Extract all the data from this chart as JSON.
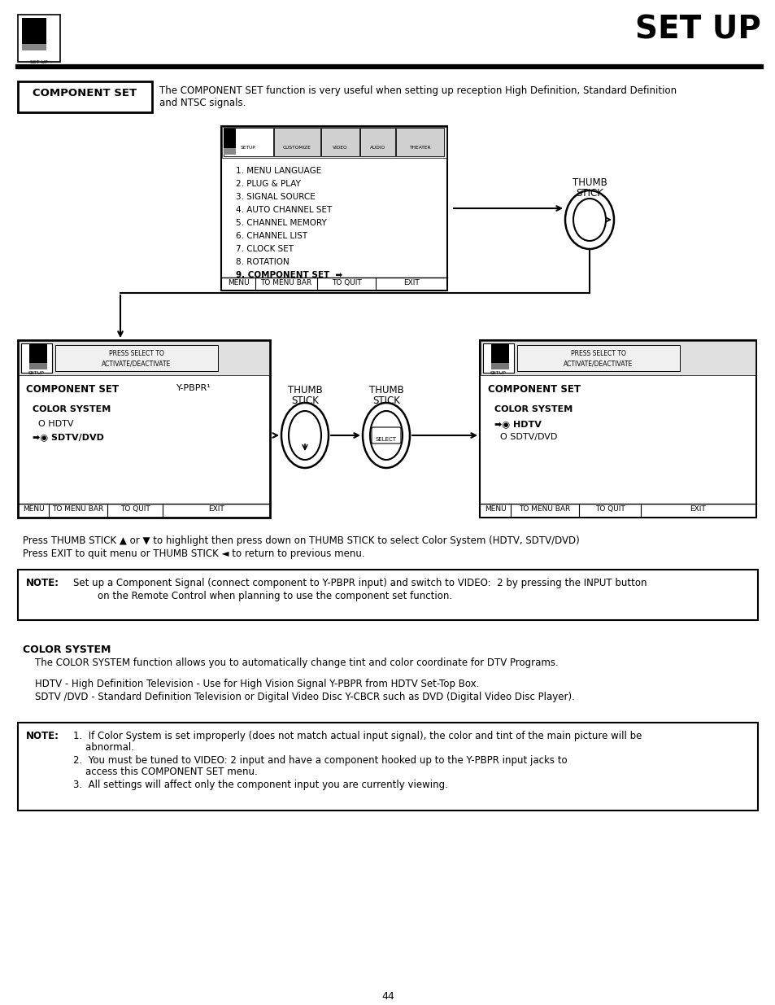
{
  "bg_color": "#ffffff",
  "title": "SET UP",
  "page_number": "44",
  "component_set_label": "COMPONENT SET",
  "component_set_desc1": "The COMPONENT SET function is very useful when setting up reception High Definition, Standard Definition",
  "component_set_desc2": "and NTSC signals.",
  "menu_items": [
    "1. MENU LANGUAGE",
    "2. PLUG & PLAY",
    "3. SIGNAL SOURCE",
    "4. AUTO CHANNEL SET",
    "5. CHANNEL MEMORY",
    "6. CHANNEL LIST",
    "7. CLOCK SET",
    "8. ROTATION"
  ],
  "menu_item9": "9. COMPONENT SET  ➡",
  "press_text1": "Press THUMB STICK ▲ or ▼ to highlight then press down on THUMB STICK to select Color System (HDTV, SDTV/DVD)",
  "press_text2": "Press EXIT to quit menu or THUMB STICK ◄ to return to previous menu.",
  "note1_line1": "Set up a Component Signal (connect component to Y-PBPR input) and switch to VIDEO:  2 by pressing the INPUT button",
  "note1_line2": "on the Remote Control when planning to use the component set function.",
  "cs_title": "COLOR SYSTEM",
  "cs_body": "    The COLOR SYSTEM function allows you to automatically change tint and color coordinate for DTV Programs.",
  "cs_hdtv": "    HDTV - High Definition Television - Use for High Vision Signal Y-PBPR from HDTV Set-Top Box.",
  "cs_sdtv": "    SDTV /DVD - Standard Definition Television or Digital Video Disc Y-CBCR such as DVD (Digital Video Disc Player).",
  "note2_line1": "1.  If Color System is set improperly (does not match actual input signal), the color and tint of the main picture will be",
  "note2_line2": "    abnormal.",
  "note2_line3": "2.  You must be tuned to VIDEO: 2 input and have a component hooked up to the Y-PBPR input jacks to",
  "note2_line4": "    access this COMPONENT SET menu.",
  "note2_line5": "3.  All settings will affect only the component input you are currently viewing.",
  "ypbpr": "Y-PBPR¹"
}
